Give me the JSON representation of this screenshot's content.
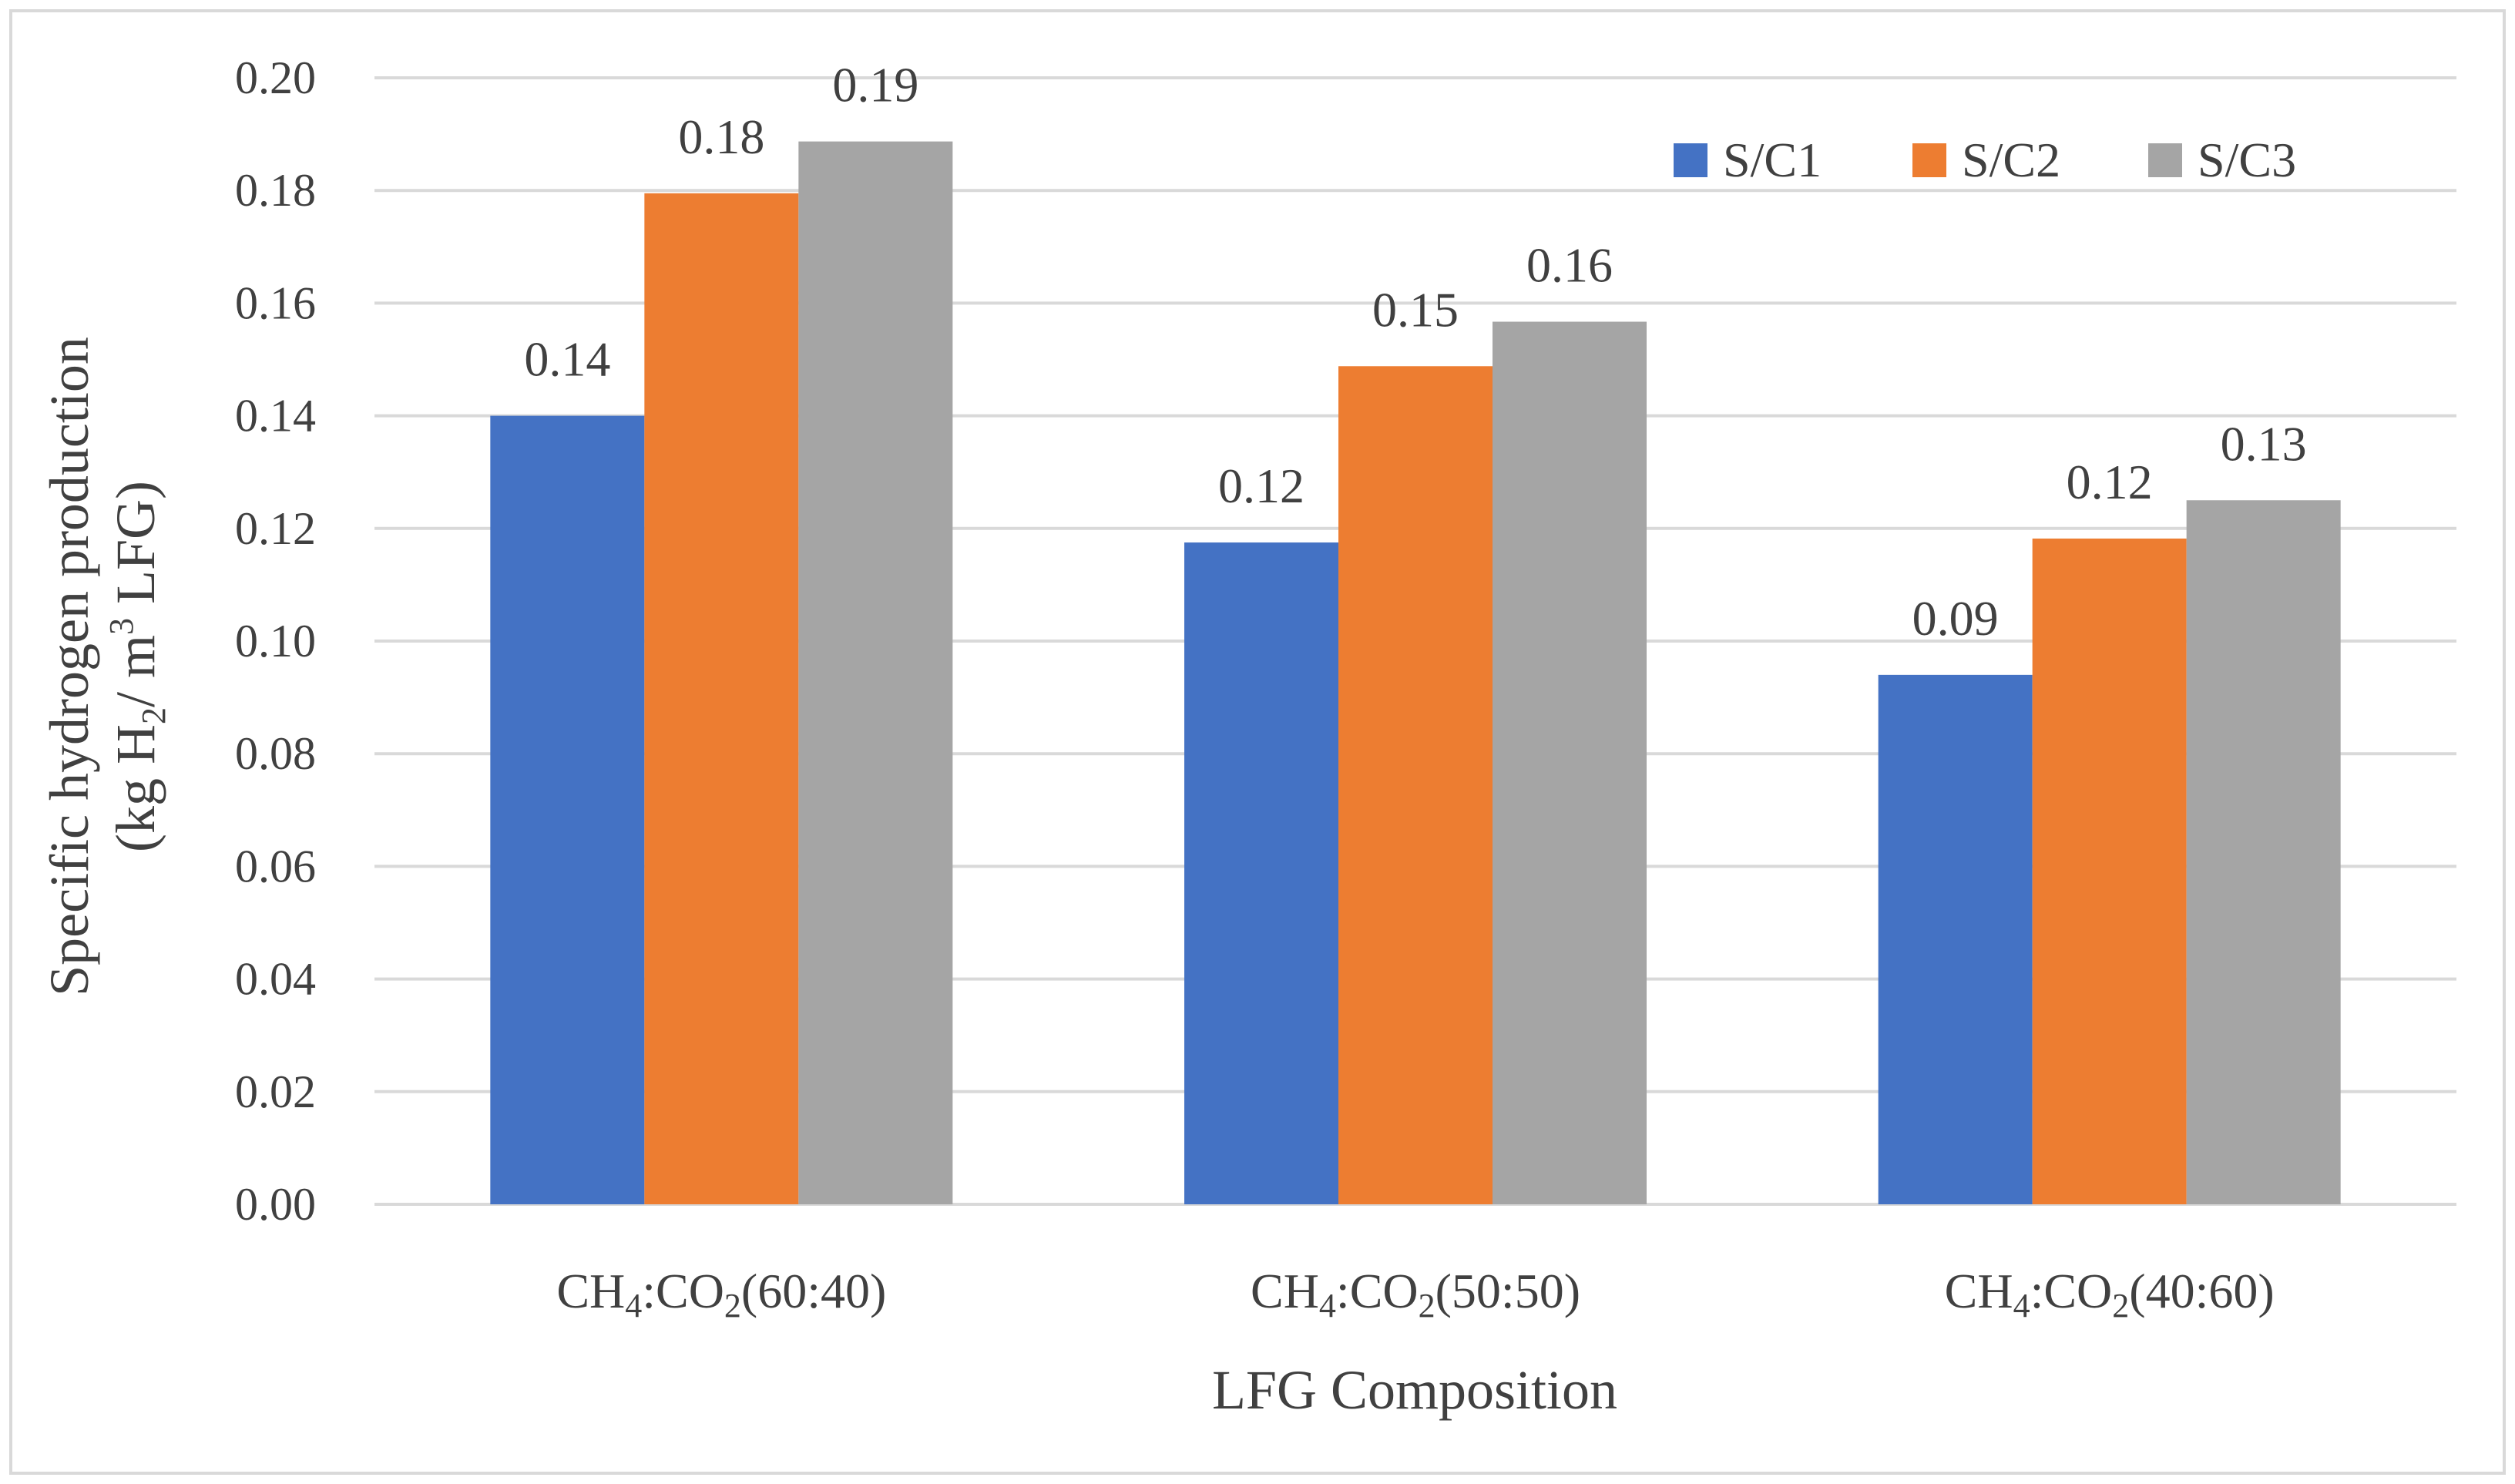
{
  "chart_data": {
    "type": "bar",
    "title": "",
    "categories": [
      {
        "pre": "CH",
        "sub1": "4",
        "mid": ":CO",
        "sub2": "2",
        "post": "(60:40)"
      },
      {
        "pre": "CH",
        "sub1": "4",
        "mid": ":CO",
        "sub2": "2",
        "post": "(50:50)"
      },
      {
        "pre": "CH",
        "sub1": "4",
        "mid": ":CO",
        "sub2": "2",
        "post": "(40:60)"
      }
    ],
    "series": [
      {
        "name": "S/C1",
        "color": "#4472c4",
        "values": [
          0.14,
          0.1175,
          0.094
        ],
        "labels": [
          "0.14",
          "0.12",
          "0.09"
        ]
      },
      {
        "name": "S/C2",
        "color": "#ed7d31",
        "values": [
          0.1795,
          0.1488,
          0.1182
        ],
        "labels": [
          "0.18",
          "0.15",
          "0.12"
        ]
      },
      {
        "name": "S/C3",
        "color": "#a5a5a5",
        "values": [
          0.1887,
          0.1567,
          0.125
        ],
        "labels": [
          "0.19",
          "0.16",
          "0.13"
        ]
      }
    ],
    "xlabel": "LFG Composition",
    "ylabel": {
      "line1": "Specific hydrogen production",
      "line2_pre": "(kg H",
      "line2_sub": "2",
      "line2_mid": "/ m",
      "line2_sup": "3",
      "line2_post": " LFG)"
    },
    "ylim": [
      0,
      0.2
    ],
    "yticks": [
      "0.00",
      "0.02",
      "0.04",
      "0.06",
      "0.08",
      "0.10",
      "0.12",
      "0.14",
      "0.16",
      "0.18",
      "0.20"
    ],
    "grid": true,
    "legend_position": "top-right"
  }
}
